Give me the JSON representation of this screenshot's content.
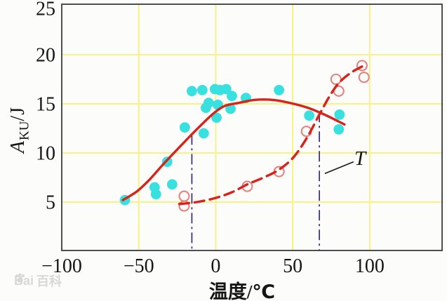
{
  "watermark": {
    "prefix": "Bai",
    "suffix": "百科"
  },
  "axis_labels": {
    "y_var": "A",
    "y_sub": "KU",
    "y_unit": "/J"
  },
  "chart_data": {
    "type": "scatter",
    "title": "",
    "xlabel": "温度/℃",
    "ylabel": "A_KU/J",
    "xlim": [
      -100,
      147
    ],
    "ylim": [
      0,
      25
    ],
    "grid": true,
    "legend": "none",
    "x_ticks": [
      {
        "value": -100,
        "label": "−100"
      },
      {
        "value": -50,
        "label": "−50"
      },
      {
        "value": 0,
        "label": "0"
      },
      {
        "value": 50,
        "label": "50"
      },
      {
        "value": 100,
        "label": "100"
      }
    ],
    "y_ticks": [
      {
        "value": 5,
        "label": "5"
      },
      {
        "value": 10,
        "label": "10"
      },
      {
        "value": 15,
        "label": "15"
      },
      {
        "value": 20,
        "label": "20"
      },
      {
        "value": 25,
        "label": "25"
      }
    ],
    "colors": {
      "background": "#fcfcfa",
      "grid": "#f8f285",
      "frame": "#3a3a3a",
      "curve_red": "#d8231c",
      "open_marker": "#e2837f",
      "filled_marker": "#38e1e0",
      "reference_line": "#342a90",
      "text": "#151515"
    },
    "series": [
      {
        "name": "filled-cyan-scatter",
        "type": "scatter",
        "marker": "filled-circle",
        "color": "#38e1e0",
        "points": [
          [
            -59.0,
            5.2
          ],
          [
            -39.7,
            6.5
          ],
          [
            -38.8,
            5.8
          ],
          [
            -31.5,
            9.1
          ],
          [
            -28.3,
            6.8
          ],
          [
            -20.1,
            12.6
          ],
          [
            -15.5,
            16.3
          ],
          [
            -8.7,
            16.4
          ],
          [
            -7.8,
            12.0
          ],
          [
            -6.4,
            14.6
          ],
          [
            -4.6,
            15.1
          ],
          [
            -0.5,
            16.5
          ],
          [
            0.5,
            13.6
          ],
          [
            1.4,
            14.9
          ],
          [
            2.7,
            16.4
          ],
          [
            6.8,
            16.5
          ],
          [
            9.6,
            14.5
          ],
          [
            10.5,
            15.8
          ],
          [
            19.6,
            15.6
          ],
          [
            41.1,
            16.4
          ],
          [
            60.7,
            13.8
          ],
          [
            79.9,
            12.4
          ],
          [
            80.4,
            13.9
          ]
        ]
      },
      {
        "name": "open-red-scatter",
        "type": "scatter",
        "marker": "open-circle",
        "color": "#e2837f",
        "points": [
          [
            -20.5,
            5.6
          ],
          [
            -20.5,
            4.6
          ],
          [
            20.5,
            6.6
          ],
          [
            41.1,
            8.1
          ],
          [
            58.9,
            12.2
          ],
          [
            78.1,
            17.5
          ],
          [
            79.9,
            16.3
          ],
          [
            95.0,
            18.9
          ],
          [
            96.3,
            17.7
          ]
        ]
      },
      {
        "name": "solid-fit-curve",
        "type": "line",
        "style": "solid",
        "color": "#d8231c",
        "points": [
          [
            -60.3,
            5.2
          ],
          [
            -51.1,
            6.1
          ],
          [
            -42.9,
            7.3
          ],
          [
            -33.8,
            8.9
          ],
          [
            -24.7,
            10.4
          ],
          [
            -15.5,
            11.9
          ],
          [
            -7.8,
            13.1
          ],
          [
            -0.9,
            14.1
          ],
          [
            6.0,
            14.8
          ],
          [
            15.1,
            15.1
          ],
          [
            25.1,
            15.4
          ],
          [
            37.0,
            15.4
          ],
          [
            48.0,
            15.1
          ],
          [
            59.8,
            14.6
          ],
          [
            72.1,
            13.8
          ],
          [
            83.6,
            12.9
          ]
        ]
      },
      {
        "name": "dashed-fit-curve",
        "type": "line",
        "style": "dashed",
        "color": "#d8231c",
        "points": [
          [
            -23.7,
            4.8
          ],
          [
            -12.3,
            5.0
          ],
          [
            -0.5,
            5.4
          ],
          [
            10.5,
            6.0
          ],
          [
            20.5,
            6.8
          ],
          [
            31.1,
            7.5
          ],
          [
            41.1,
            8.3
          ],
          [
            50.7,
            9.6
          ],
          [
            59.4,
            11.6
          ],
          [
            67.6,
            14.0
          ],
          [
            74.4,
            15.9
          ],
          [
            80.4,
            17.2
          ],
          [
            88.1,
            18.2
          ],
          [
            96.3,
            18.9
          ]
        ]
      }
    ],
    "reference_lines": [
      {
        "x": -15.5,
        "y_top": 11.9
      },
      {
        "x": 67.3,
        "y_top": 14.2
      }
    ],
    "annotation": {
      "label": "T",
      "leader_from": [
        70.8,
        7.9
      ],
      "leader_to": [
        89.5,
        9.1
      ]
    }
  }
}
